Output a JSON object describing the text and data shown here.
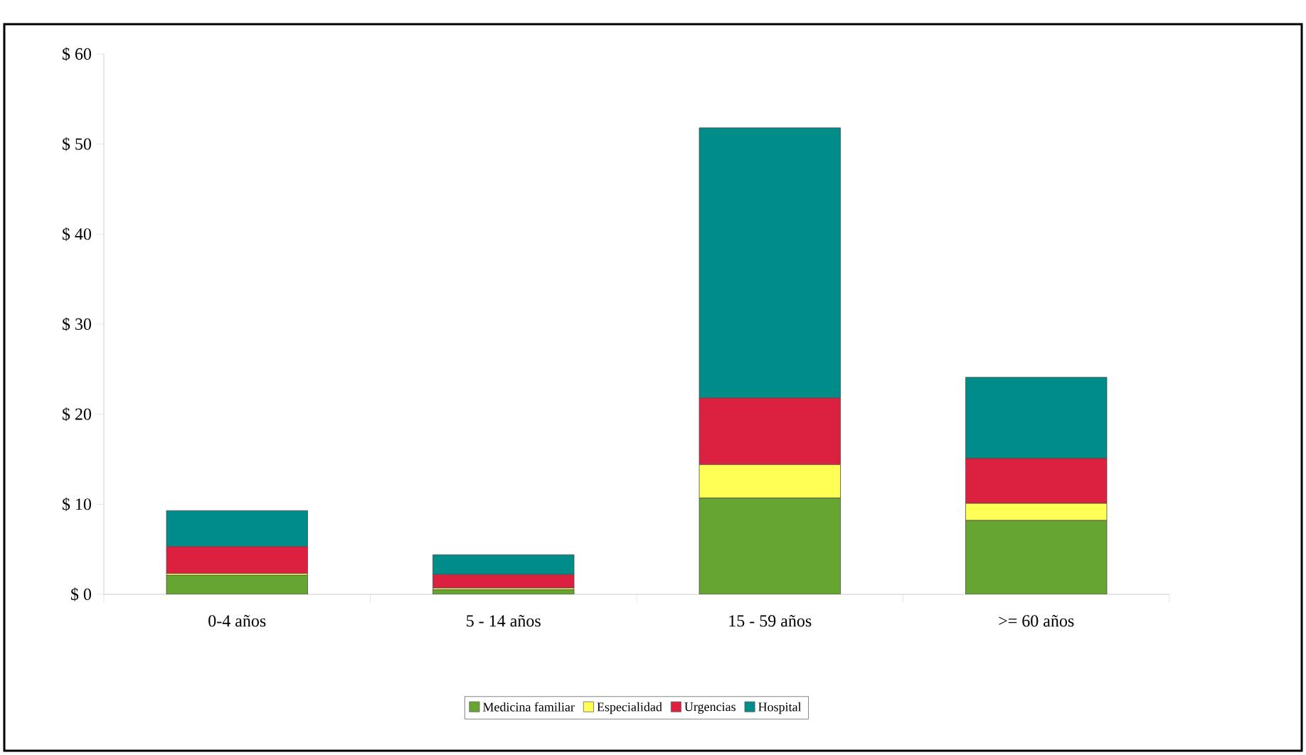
{
  "chart_data": {
    "type": "bar",
    "stacked": true,
    "legend": "bottom",
    "categories": [
      "0-4 años",
      "5 - 14 años",
      "15 - 59 años",
      ">= 60 años"
    ],
    "series": [
      {
        "name": "Medicina familiar",
        "color": "#66a532",
        "values": [
          2.1,
          0.5,
          10.7,
          8.2
        ]
      },
      {
        "name": "Especialidad",
        "color": "#ffff55",
        "values": [
          0.2,
          0.2,
          3.7,
          1.9
        ]
      },
      {
        "name": "Urgencias",
        "color": "#dc2040",
        "values": [
          3.0,
          1.5,
          7.4,
          5.0
        ]
      },
      {
        "name": "Hospital",
        "color": "#008c88",
        "values": [
          4.0,
          2.2,
          30.0,
          9.0
        ]
      }
    ],
    "ylim": [
      0,
      60
    ],
    "yticks": [
      {
        "value": 0,
        "label": "$ 0"
      },
      {
        "value": 10,
        "label": "$ 10"
      },
      {
        "value": 20,
        "label": "$ 20"
      },
      {
        "value": 30,
        "label": "$ 30"
      },
      {
        "value": 40,
        "label": "$ 40"
      },
      {
        "value": 50,
        "label": "$ 50"
      },
      {
        "value": 60,
        "label": "$ 60"
      }
    ]
  }
}
